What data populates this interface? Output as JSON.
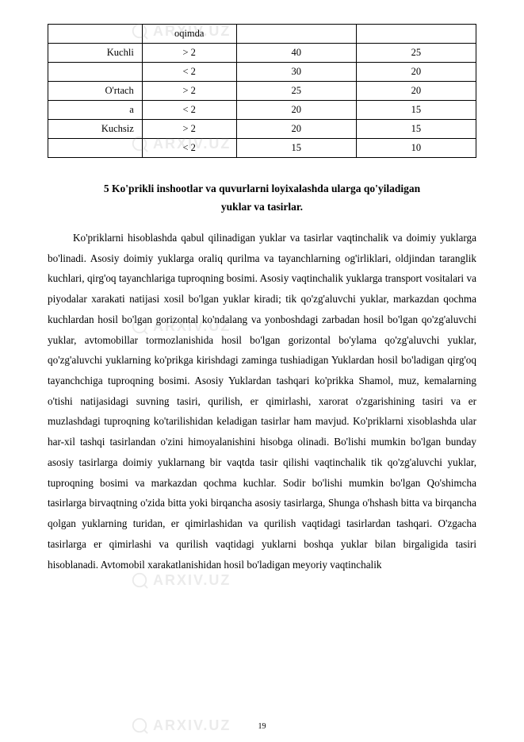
{
  "watermark_text": "ARXIV.UZ",
  "table": {
    "rows": [
      {
        "label": "",
        "cond": "oqimda",
        "v1": "",
        "v2": ""
      },
      {
        "label": "Kuchli",
        "cond": "> 2",
        "v1": "40",
        "v2": "25"
      },
      {
        "label": "",
        "cond": "< 2",
        "v1": "30",
        "v2": "20"
      },
      {
        "label": "O'rtach",
        "cond": "> 2",
        "v1": "25",
        "v2": "20"
      },
      {
        "label": "a",
        "cond": "< 2",
        "v1": "20",
        "v2": "15"
      },
      {
        "label": "Kuchsiz",
        "cond": "> 2",
        "v1": "20",
        "v2": "15"
      },
      {
        "label": "",
        "cond": "< 2",
        "v1": "15",
        "v2": "10"
      }
    ]
  },
  "heading": "5 Ko'prikli inshootlar va quvurlarni loyixalashda ularga qo'yiladigan yuklar va tasirlar.",
  "body": "Ko'priklarni hisoblashda qabul qilinadigan yuklar va tasirlar vaqtinchalik va doimiy yuklarga bo'linadi. Asosiy doimiy yuklarga oraliq qurilma va tayanchlarning og'irliklari, oldjindan taranglik kuchlari, qirg'oq tayanchlariga tuproqning bosimi. Asosiy vaqtinchalik yuklarga transport vositalari va piyodalar xarakati natijasi xosil bo'lgan yuklar kiradi; tik qo'zg'aluvchi yuklar, markazdan qochma kuchlardan hosil bo'lgan gorizontal ko'ndalang va yonboshdagi zarbadan hosil bo'lgan qo'zg'aluvchi yuklar, avtomobillar tormozlanishida hosil bo'lgan gorizontal bo'ylama qo'zg'aluvchi yuklar, qo'zg'aluvchi yuklarning ko'prikga kirishdagi zaminga tushiadigan Yuklardan hosil bo'ladigan qirg'oq tayanchchiga tuproqning bosimi. Asosiy Yuklardan tashqari ko'prikka Shamol, muz, kemalarning o'tishi natijasidagi suvning tasiri, qurilish, er qimirlashi, xarorat o'zgarishining tasiri va er muzlashdagi tuproqning ko'tarilishidan keladigan tasirlar ham mavjud. Ko'priklarni xisoblashda ular har-xil tashqi tasirlandan o'zini himoyalanishini hisobga olinadi. Bo'lishi mumkin bo'lgan bunday asosiy tasirlarga doimiy yuklarnang bir vaqtda tasir qilishi vaqtinchalik tik qo'zg'aluvchi yuklar, tuproqning bosimi va markazdan qochma kuchlar. Sodir bo'lishi mumkin bo'lgan Qo'shimcha tasirlarga birvaqtning o'zida bitta yoki birqancha asosiy tasirlarga, Shunga o'hshash bitta va birqancha qolgan yuklarning turidan, er qimirlashidan va qurilish vaqtidagi tasirlardan tashqari. O'zgacha tasirlarga er qimirlashi va qurilish vaqtidagi yuklarni boshqa yuklar bilan birgaligida tasiri hisoblanadi. Avtomobil xarakatlanishidan hosil bo'ladigan meyoriy vaqtinchalik",
  "page_number": "19"
}
